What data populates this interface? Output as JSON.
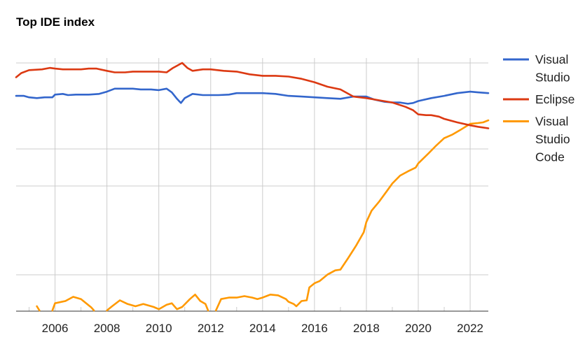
{
  "colors": {
    "visual_studio": "#3366cc",
    "eclipse": "#dc3912",
    "vs_code": "#ff9900",
    "grid": "#cccccc"
  },
  "chart_data": {
    "type": "line",
    "title": "Top IDE index",
    "xlabel": "",
    "ylabel": "",
    "x_ticks": [
      "2006",
      "2008",
      "2010",
      "2012",
      "2014",
      "2016",
      "2018",
      "2020",
      "2022"
    ],
    "x_range": [
      2004.5,
      2022.7
    ],
    "y_range": [
      0,
      100
    ],
    "y_tick_labels_shown": false,
    "grid": true,
    "legend_position": "right",
    "series": [
      {
        "name": "Visual Studio",
        "legend_lines": [
          "Visual",
          "Studio"
        ],
        "color": "#3366cc",
        "points": [
          [
            2004.5,
            86.7
          ],
          [
            2004.8,
            86.7
          ],
          [
            2005.0,
            86.1
          ],
          [
            2005.3,
            85.8
          ],
          [
            2005.6,
            86.1
          ],
          [
            2005.9,
            86.1
          ],
          [
            2006.0,
            87.2
          ],
          [
            2006.3,
            87.5
          ],
          [
            2006.5,
            87.0
          ],
          [
            2006.8,
            87.2
          ],
          [
            2007.0,
            87.2
          ],
          [
            2007.3,
            87.2
          ],
          [
            2007.7,
            87.5
          ],
          [
            2008.0,
            88.4
          ],
          [
            2008.3,
            89.6
          ],
          [
            2008.7,
            89.6
          ],
          [
            2009.0,
            89.6
          ],
          [
            2009.3,
            89.3
          ],
          [
            2009.7,
            89.3
          ],
          [
            2010.0,
            89.0
          ],
          [
            2010.3,
            89.6
          ],
          [
            2010.5,
            88.1
          ],
          [
            2010.7,
            85.5
          ],
          [
            2010.85,
            83.8
          ],
          [
            2011.0,
            85.8
          ],
          [
            2011.3,
            87.5
          ],
          [
            2011.7,
            87.0
          ],
          [
            2012.0,
            87.0
          ],
          [
            2012.3,
            87.0
          ],
          [
            2012.7,
            87.2
          ],
          [
            2013.0,
            87.8
          ],
          [
            2013.5,
            87.8
          ],
          [
            2014.0,
            87.8
          ],
          [
            2014.5,
            87.5
          ],
          [
            2015.0,
            86.7
          ],
          [
            2015.5,
            86.4
          ],
          [
            2016.0,
            86.1
          ],
          [
            2016.5,
            85.8
          ],
          [
            2017.0,
            85.5
          ],
          [
            2017.5,
            86.4
          ],
          [
            2018.0,
            86.4
          ],
          [
            2018.3,
            85.2
          ],
          [
            2018.7,
            84.3
          ],
          [
            2019.0,
            84.0
          ],
          [
            2019.3,
            84.0
          ],
          [
            2019.6,
            83.5
          ],
          [
            2019.8,
            83.8
          ],
          [
            2020.0,
            84.6
          ],
          [
            2020.5,
            85.8
          ],
          [
            2021.0,
            86.7
          ],
          [
            2021.5,
            87.8
          ],
          [
            2022.0,
            88.4
          ],
          [
            2022.3,
            88.1
          ],
          [
            2022.7,
            87.8
          ]
        ]
      },
      {
        "name": "Eclipse",
        "legend_lines": [
          "Eclipse"
        ],
        "color": "#dc3912",
        "points": [
          [
            2004.5,
            94.2
          ],
          [
            2004.7,
            95.9
          ],
          [
            2005.0,
            97.1
          ],
          [
            2005.5,
            97.4
          ],
          [
            2005.8,
            98.0
          ],
          [
            2006.0,
            97.7
          ],
          [
            2006.3,
            97.4
          ],
          [
            2006.7,
            97.4
          ],
          [
            2007.0,
            97.4
          ],
          [
            2007.3,
            97.7
          ],
          [
            2007.6,
            97.7
          ],
          [
            2008.0,
            96.8
          ],
          [
            2008.3,
            96.2
          ],
          [
            2008.7,
            96.2
          ],
          [
            2009.0,
            96.5
          ],
          [
            2009.3,
            96.5
          ],
          [
            2009.7,
            96.5
          ],
          [
            2010.0,
            96.5
          ],
          [
            2010.3,
            96.2
          ],
          [
            2010.55,
            98.0
          ],
          [
            2010.9,
            100.0
          ],
          [
            2011.1,
            98.0
          ],
          [
            2011.3,
            96.8
          ],
          [
            2011.7,
            97.4
          ],
          [
            2012.0,
            97.4
          ],
          [
            2012.5,
            96.8
          ],
          [
            2013.0,
            96.5
          ],
          [
            2013.5,
            95.4
          ],
          [
            2014.0,
            94.8
          ],
          [
            2014.5,
            94.8
          ],
          [
            2015.0,
            94.5
          ],
          [
            2015.5,
            93.6
          ],
          [
            2016.0,
            92.2
          ],
          [
            2016.5,
            90.4
          ],
          [
            2017.0,
            89.3
          ],
          [
            2017.5,
            86.4
          ],
          [
            2018.0,
            85.8
          ],
          [
            2018.5,
            84.9
          ],
          [
            2019.0,
            84.0
          ],
          [
            2019.5,
            82.3
          ],
          [
            2019.8,
            80.9
          ],
          [
            2020.0,
            79.2
          ],
          [
            2020.3,
            78.9
          ],
          [
            2020.5,
            78.9
          ],
          [
            2020.8,
            78.3
          ],
          [
            2021.0,
            77.4
          ],
          [
            2021.5,
            76.0
          ],
          [
            2022.0,
            74.8
          ],
          [
            2022.3,
            74.2
          ],
          [
            2022.7,
            73.6
          ]
        ]
      },
      {
        "name": "Visual Studio Code",
        "legend_lines": [
          "Visual",
          "Studio",
          "Code"
        ],
        "color": "#ff9900",
        "segments": [
          [
            [
              2005.3,
              1.7
            ],
            [
              2005.4,
              0
            ]
          ],
          [
            [
              2005.9,
              0
            ],
            [
              2006.0,
              2.9
            ],
            [
              2006.4,
              3.8
            ],
            [
              2006.7,
              5.5
            ],
            [
              2007.0,
              4.6
            ],
            [
              2007.2,
              2.9
            ],
            [
              2007.4,
              1.2
            ],
            [
              2007.5,
              0
            ]
          ],
          [
            [
              2008.0,
              0
            ],
            [
              2008.2,
              1.7
            ],
            [
              2008.5,
              4.1
            ],
            [
              2008.8,
              2.6
            ],
            [
              2009.1,
              1.7
            ],
            [
              2009.4,
              2.6
            ],
            [
              2009.8,
              1.4
            ],
            [
              2010.0,
              0.5
            ],
            [
              2010.3,
              2.3
            ],
            [
              2010.5,
              2.9
            ],
            [
              2010.7,
              0.5
            ],
            [
              2010.9,
              1.4
            ],
            [
              2011.2,
              4.6
            ],
            [
              2011.4,
              6.4
            ],
            [
              2011.6,
              3.8
            ],
            [
              2011.8,
              2.6
            ],
            [
              2011.9,
              0
            ]
          ],
          [
            [
              2012.2,
              0
            ],
            [
              2012.4,
              4.6
            ],
            [
              2012.7,
              5.2
            ],
            [
              2013.0,
              5.2
            ],
            [
              2013.3,
              5.8
            ],
            [
              2013.6,
              5.2
            ],
            [
              2013.8,
              4.6
            ],
            [
              2014.0,
              5.2
            ],
            [
              2014.3,
              6.4
            ],
            [
              2014.6,
              6.1
            ],
            [
              2014.9,
              4.6
            ],
            [
              2015.0,
              3.5
            ],
            [
              2015.2,
              2.6
            ],
            [
              2015.3,
              1.7
            ],
            [
              2015.5,
              3.8
            ],
            [
              2015.7,
              4.1
            ],
            [
              2015.8,
              9.3
            ],
            [
              2016.0,
              11.0
            ],
            [
              2016.2,
              11.9
            ],
            [
              2016.5,
              14.5
            ],
            [
              2016.8,
              16.2
            ],
            [
              2017.0,
              16.5
            ],
            [
              2017.3,
              21.2
            ],
            [
              2017.6,
              26.1
            ],
            [
              2017.9,
              31.6
            ],
            [
              2018.0,
              35.7
            ],
            [
              2018.2,
              40.3
            ],
            [
              2018.5,
              44.1
            ],
            [
              2018.8,
              48.4
            ],
            [
              2019.0,
              51.3
            ],
            [
              2019.3,
              54.5
            ],
            [
              2019.6,
              56.2
            ],
            [
              2019.9,
              57.7
            ],
            [
              2020.0,
              59.4
            ],
            [
              2020.4,
              63.5
            ],
            [
              2020.7,
              66.7
            ],
            [
              2021.0,
              69.6
            ],
            [
              2021.3,
              71.0
            ],
            [
              2021.6,
              72.8
            ],
            [
              2022.0,
              75.4
            ],
            [
              2022.3,
              75.7
            ],
            [
              2022.5,
              76.0
            ],
            [
              2022.7,
              76.8
            ]
          ]
        ]
      }
    ]
  }
}
